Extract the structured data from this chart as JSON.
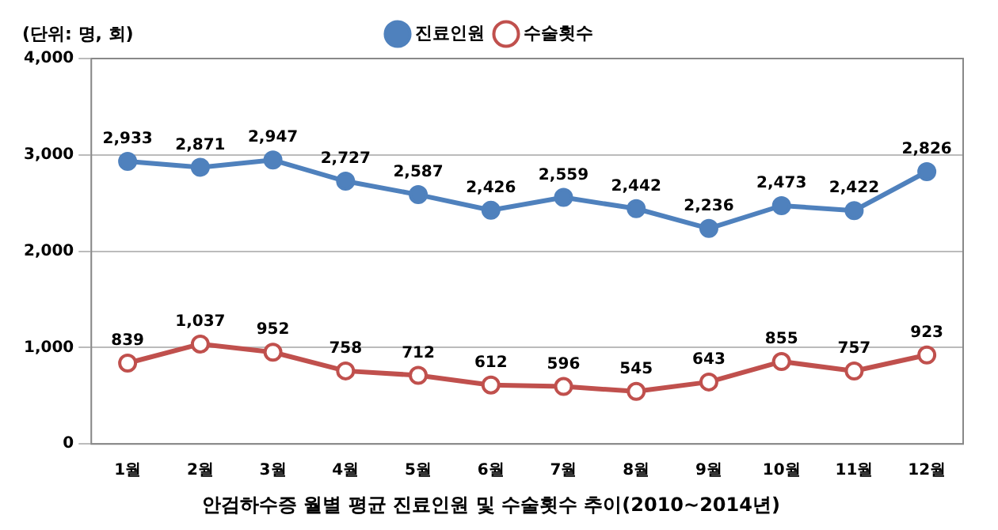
{
  "chart_data": {
    "type": "line",
    "title": "안검하수증 월별 평균 진료인원 및 수술횟수 추이(2010~2014년)",
    "annotations": [
      "(단위: 명, 회)"
    ],
    "categories": [
      "1월",
      "2월",
      "3월",
      "4월",
      "5월",
      "6월",
      "7월",
      "8월",
      "9월",
      "10월",
      "11월",
      "12월"
    ],
    "series": [
      {
        "name": "진료인원",
        "color": "#4f81bd",
        "values": [
          2933,
          2871,
          2947,
          2727,
          2587,
          2426,
          2559,
          2442,
          2236,
          2473,
          2422,
          2826
        ],
        "value_labels": [
          "2,933",
          "2,871",
          "2,947",
          "2,727",
          "2,587",
          "2,426",
          "2,559",
          "2,442",
          "2,236",
          "2,473",
          "2,422",
          "2,826"
        ]
      },
      {
        "name": "수술횟수",
        "color": "#c0504d",
        "values": [
          839,
          1037,
          952,
          758,
          712,
          612,
          596,
          545,
          643,
          855,
          757,
          923
        ],
        "value_labels": [
          "839",
          "1,037",
          "952",
          "758",
          "712",
          "612",
          "596",
          "545",
          "643",
          "855",
          "757",
          "923"
        ]
      }
    ],
    "ylim": [
      0,
      4000
    ],
    "yticks": [
      0,
      {
        "value": 1000,
        "label": "1,000"
      },
      {
        "value": 2000,
        "label": "2,000"
      },
      {
        "value": 3000,
        "label": "3,000"
      },
      {
        "value": 4000,
        "label": "4,000"
      }
    ],
    "grid": "y",
    "legend": "top",
    "marker": "circle",
    "line_style": "solid"
  }
}
